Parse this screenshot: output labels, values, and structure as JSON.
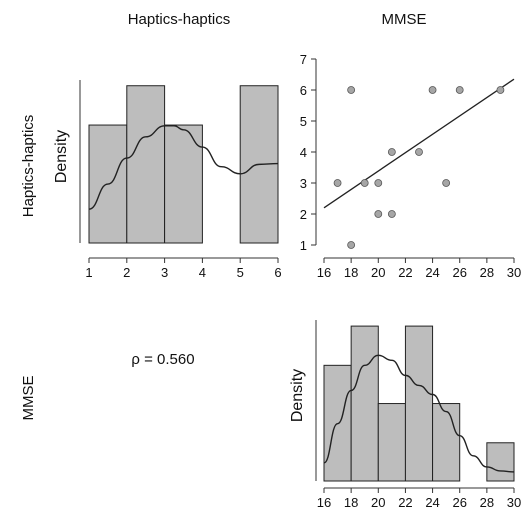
{
  "matrix": {
    "col_titles": [
      "Haptics-haptics",
      "MMSE"
    ],
    "row_titles": [
      "Haptics-haptics",
      "MMSE"
    ],
    "correlation_label": "ρ = 0.560"
  },
  "colors": {
    "bar_fill": "#bdbdbd",
    "bar_stroke": "#222222",
    "point_fill": "#a6a6a6",
    "line": "#222222",
    "axis": "#333333"
  },
  "chart_data": [
    {
      "type": "bar",
      "subtype": "histogram-with-density",
      "panel": "Haptics-haptics distribution",
      "ylabel": "Density",
      "x_ticks": [
        1,
        2,
        3,
        4,
        5,
        6
      ],
      "xlim": [
        1,
        6
      ],
      "bins": [
        {
          "from": 1,
          "to": 2,
          "value": 0.15
        },
        {
          "from": 2,
          "to": 3,
          "value": 0.2
        },
        {
          "from": 3,
          "to": 4,
          "value": 0.15
        },
        {
          "from": 4,
          "to": 5,
          "value": 0.0
        },
        {
          "from": 5,
          "to": 6,
          "value": 0.2
        }
      ],
      "ylim": [
        0,
        0.22
      ],
      "density": {
        "x": [
          1.0,
          1.5,
          2.0,
          2.5,
          3.0,
          3.25,
          3.5,
          4.0,
          4.5,
          5.0,
          5.5,
          6.0
        ],
        "y": [
          0.043,
          0.075,
          0.108,
          0.135,
          0.149,
          0.149,
          0.144,
          0.122,
          0.097,
          0.088,
          0.1,
          0.101
        ]
      },
      "grid": false
    },
    {
      "type": "scatter",
      "panel": "MMSE vs Haptics-haptics",
      "x_ticks": [
        16,
        18,
        20,
        22,
        24,
        26,
        28,
        30
      ],
      "y_ticks": [
        1,
        2,
        3,
        4,
        5,
        6,
        7
      ],
      "xlim": [
        16,
        30
      ],
      "ylim": [
        1,
        7
      ],
      "points": [
        {
          "x": 17,
          "y": 3
        },
        {
          "x": 18,
          "y": 6
        },
        {
          "x": 18,
          "y": 1
        },
        {
          "x": 19,
          "y": 3
        },
        {
          "x": 20,
          "y": 3
        },
        {
          "x": 20,
          "y": 2
        },
        {
          "x": 21,
          "y": 4
        },
        {
          "x": 21,
          "y": 2
        },
        {
          "x": 23,
          "y": 4
        },
        {
          "x": 24,
          "y": 6
        },
        {
          "x": 25,
          "y": 3
        },
        {
          "x": 26,
          "y": 6
        },
        {
          "x": 29,
          "y": 6
        }
      ],
      "fit_line": {
        "x": [
          16,
          30
        ],
        "y": [
          2.2,
          6.35
        ]
      },
      "grid": false
    },
    {
      "type": "bar",
      "subtype": "histogram-with-density",
      "panel": "MMSE distribution",
      "ylabel": "Density",
      "x_ticks": [
        16,
        18,
        20,
        22,
        24,
        26,
        28,
        30
      ],
      "xlim": [
        16,
        30
      ],
      "bins": [
        {
          "from": 16,
          "to": 18,
          "value": 0.115
        },
        {
          "from": 18,
          "to": 20,
          "value": 0.154
        },
        {
          "from": 20,
          "to": 22,
          "value": 0.077
        },
        {
          "from": 22,
          "to": 24,
          "value": 0.154
        },
        {
          "from": 24,
          "to": 26,
          "value": 0.077
        },
        {
          "from": 26,
          "to": 28,
          "value": 0.0
        },
        {
          "from": 28,
          "to": 30,
          "value": 0.038
        }
      ],
      "ylim": [
        0,
        0.17
      ],
      "density": {
        "x": [
          16,
          17,
          18,
          19,
          20,
          21,
          22,
          23,
          24,
          25,
          26,
          27,
          28,
          29,
          30
        ],
        "y": [
          0.018,
          0.057,
          0.09,
          0.115,
          0.125,
          0.12,
          0.105,
          0.095,
          0.086,
          0.069,
          0.045,
          0.025,
          0.014,
          0.01,
          0.009
        ]
      },
      "grid": false
    }
  ]
}
